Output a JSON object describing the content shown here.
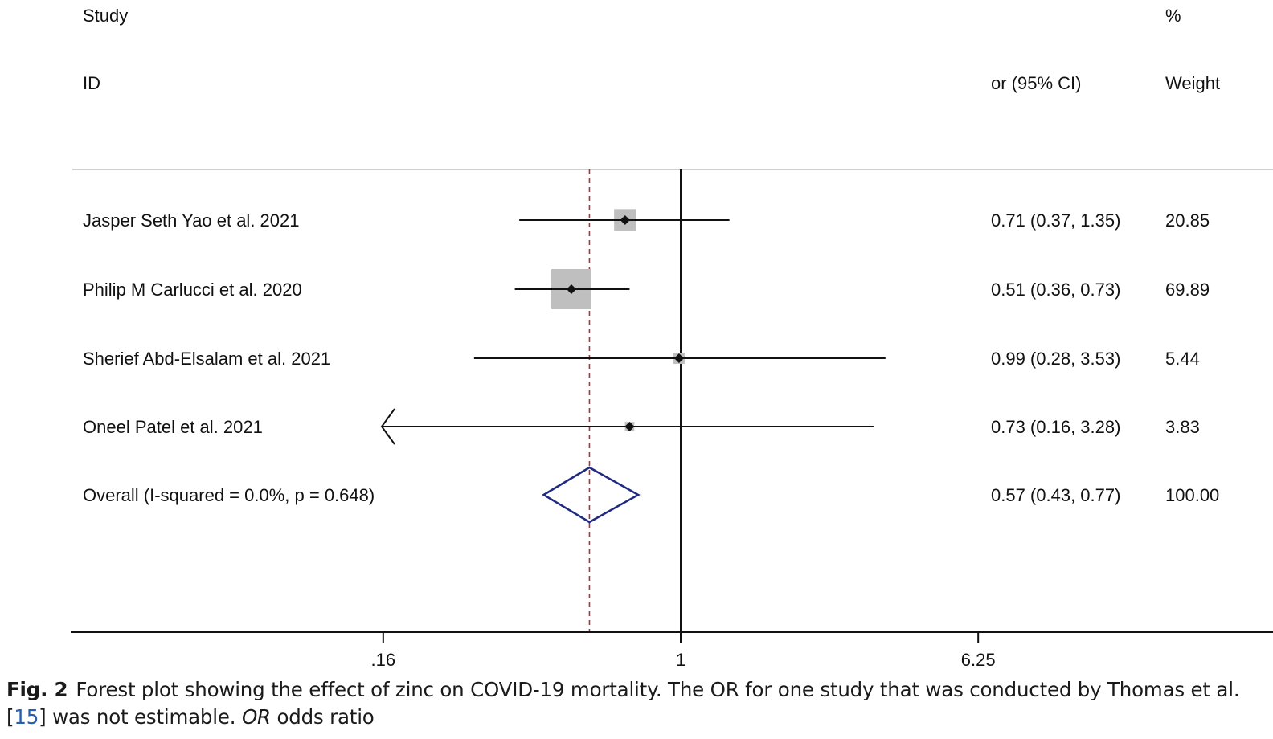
{
  "header": {
    "study_label": "Study",
    "id_label": "ID",
    "effect_label": "or (95% CI)",
    "pct_label": "%",
    "weight_label": "Weight"
  },
  "chart_data": {
    "type": "forest",
    "x_scale": "log",
    "x_ticks": [
      {
        "value": 0.16,
        "label": ".16"
      },
      {
        "value": 1,
        "label": "1"
      },
      {
        "value": 6.25,
        "label": "6.25"
      }
    ],
    "null_line": 1,
    "studies": [
      {
        "name": "Jasper Seth Yao et al. 2021",
        "or": 0.71,
        "lower": 0.37,
        "upper": 1.35,
        "ci_text": "0.71 (0.37, 1.35)",
        "weight": 20.85,
        "weight_text": "20.85"
      },
      {
        "name": "Philip M Carlucci et al. 2020",
        "or": 0.51,
        "lower": 0.36,
        "upper": 0.73,
        "ci_text": "0.51 (0.36, 0.73)",
        "weight": 69.89,
        "weight_text": "69.89"
      },
      {
        "name": "Sherief Abd-Elsalam et al. 2021",
        "or": 0.99,
        "lower": 0.28,
        "upper": 3.53,
        "ci_text": "0.99 (0.28, 3.53)",
        "weight": 5.44,
        "weight_text": "5.44"
      },
      {
        "name": "Oneel Patel et al. 2021",
        "or": 0.73,
        "lower": 0.16,
        "upper": 3.28,
        "ci_text": "0.73 (0.16, 3.28)",
        "weight": 3.83,
        "weight_text": "3.83",
        "lower_truncated": true
      }
    ],
    "overall": {
      "name": "Overall  (I-squared = 0.0%, p = 0.648)",
      "or": 0.57,
      "lower": 0.43,
      "upper": 0.77,
      "ci_text": "0.57 (0.43, 0.77)",
      "weight_text": "100.00"
    },
    "colors": {
      "box": "#bfbfbf",
      "diamond": "#1f2a80",
      "overall_line": "#b03040",
      "axis": "#111111"
    }
  },
  "caption": {
    "fig_label": "Fig. 2",
    "text_before_ref": "Forest plot showing the effect of zinc on COVID-19 mortality. The OR for one study that was conducted by Thomas et al. [",
    "ref": "15",
    "text_after_ref": "] was not estimable. ",
    "abbr": "OR",
    "abbr_def": " odds ratio"
  }
}
